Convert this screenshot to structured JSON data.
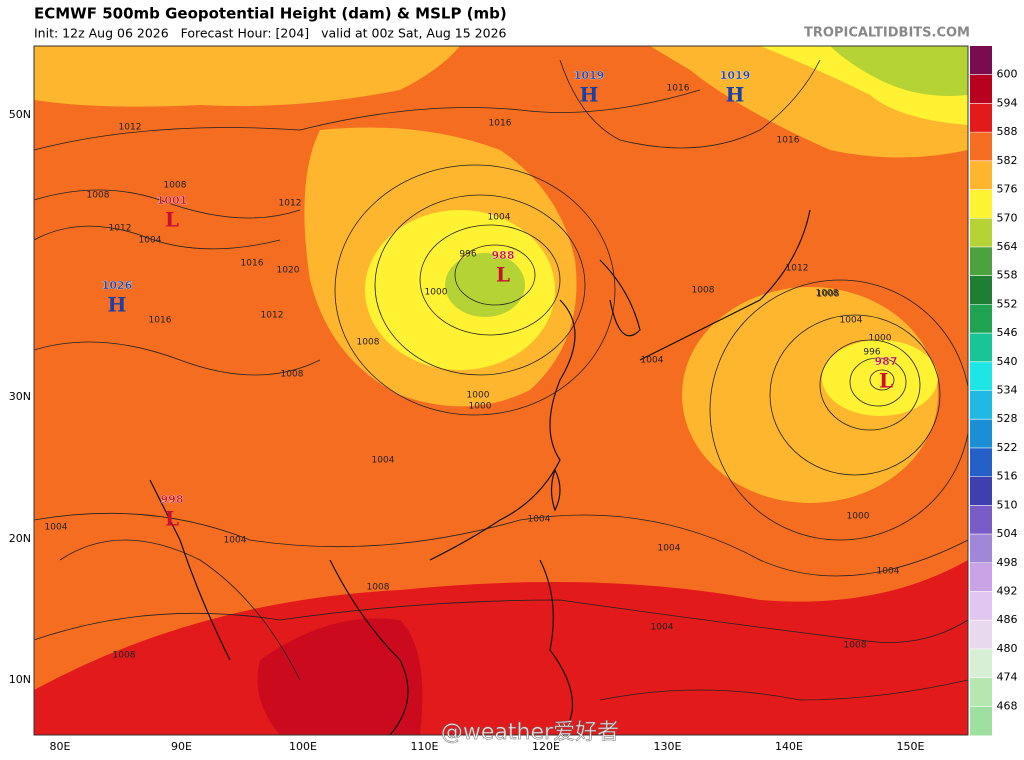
{
  "header": {
    "title": "ECMWF 500mb Geopotential Height (dam) & MSLP (mb)",
    "subtitle": "Init: 12z Aug 06 2026   Forecast Hour: [204]   valid at 00z Sat, Aug 15 2026",
    "source": "TROPICALTIDBITS.COM"
  },
  "colorbar": {
    "labels": [
      600,
      594,
      588,
      582,
      576,
      570,
      564,
      558,
      552,
      546,
      540,
      534,
      528,
      522,
      516,
      510,
      504,
      498,
      492,
      486,
      480,
      474,
      468
    ],
    "colors": [
      "#7a0b4f",
      "#b8001f",
      "#e31a1c",
      "#f46d20",
      "#fdb62d",
      "#fef232",
      "#b5d334",
      "#4ca23d",
      "#1e7e34",
      "#1fa352",
      "#19c596",
      "#1ee6e6",
      "#20b8e5",
      "#1b8fd6",
      "#2560c8",
      "#3f3fb0",
      "#7a5cc8",
      "#a087d8",
      "#c9a3e6",
      "#e0c6f0",
      "#e9d9ef",
      "#d7f0d5",
      "#b5e8b0",
      "#9fe0a0"
    ]
  },
  "lat_labels": [
    "50N",
    "30N",
    "20N",
    "10N"
  ],
  "lon_labels": [
    "80E",
    "90E",
    "100E",
    "110E",
    "120E",
    "130E",
    "140E",
    "150E"
  ],
  "pressure_centers": [
    {
      "type": "H",
      "value": 1019
    },
    {
      "type": "H",
      "value": 1019
    },
    {
      "type": "L",
      "value": 1001
    },
    {
      "type": "H",
      "value": 1026
    },
    {
      "type": "L",
      "value": 988
    },
    {
      "type": "L",
      "value": 987
    },
    {
      "type": "L",
      "value": 998
    }
  ],
  "contour_labels": [
    1016,
    1016,
    1016,
    1012,
    1012,
    1008,
    1008,
    1004,
    1012,
    1016,
    1020,
    1016,
    1012,
    1008,
    1004,
    1008,
    1004,
    996,
    1000,
    1000,
    1008,
    1004,
    1000,
    1004,
    1004,
    1012,
    1008,
    1004,
    1008,
    1004,
    1000,
    996,
    1000,
    1004,
    1008,
    1004,
    1008,
    1004,
    1008
  ],
  "watermark": "@weather爱好者"
}
